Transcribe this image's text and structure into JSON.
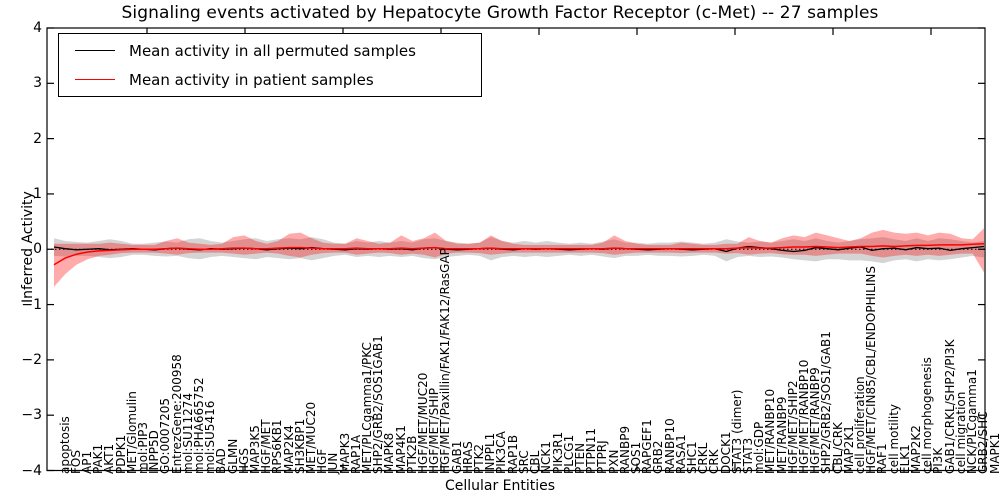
{
  "chart_data": {
    "type": "line",
    "title": "Signaling events activated by Hepatocyte Growth Factor Receptor (c-Met) -- 27 samples",
    "xlabel": "Cellular Entities",
    "ylabel": "Inferred Activity",
    "ylim": [
      -4,
      4
    ],
    "yticks": [
      4,
      3,
      2,
      1,
      0,
      -1,
      -2,
      -3,
      -4
    ],
    "ytick_labels": [
      "4",
      "3",
      "2",
      "1",
      "0",
      "−1",
      "−2",
      "−3",
      "−4"
    ],
    "grid": false,
    "zero_line_style": "dotted",
    "legend_position": "upper left",
    "categories": [
      "apoptosis",
      "FOS",
      "AP1",
      "PAK1",
      "AKT1",
      "PDPK1",
      "MET/Glomulin",
      "mol:PIP3",
      "INPP5D",
      "GO:0007205",
      "EntrezGene:200958",
      "mol:SU11274",
      "mol:PHA665752",
      "mol:SU5416",
      "BAD",
      "GLMN",
      "HGS",
      "MAP3K5",
      "HGF/MET",
      "RPS6KB1",
      "MAP2K4",
      "SH3KBP1",
      "MET/MUC20",
      "HGF",
      "JUN",
      "MAPK3",
      "RAP1A",
      "MET/PLCgamma1/PKC",
      "SHP2/GRB2/SOS1GAB1",
      "MAPK8",
      "MAP4K1",
      "PTK2B",
      "HGF/MET/MUC20",
      "HGF/MET/SHIP",
      "HGF/MET/Paxillin/FAK1/FAK12/RasGAP",
      "GAB1",
      "HRAS",
      "PTK2",
      "INPPL1",
      "PIK3CA",
      "RAP1B",
      "SRC",
      "CBL",
      "NCK1",
      "PIK3R1",
      "PLCG1",
      "PTEN",
      "PTPN11",
      "PTPRJ",
      "PXN",
      "RANBP9",
      "SOS1",
      "RAPGEF1",
      "GRB2",
      "RANBP10",
      "RASA1",
      "SHC1",
      "CRKL",
      "CRK",
      "DOCK1",
      "STAT3 (dimer)",
      "STAT3",
      "mol:GDP",
      "MET/RANBP10",
      "MET/RANBP9",
      "HGF/MET/SHIP2",
      "HGF/MET/RANBP10",
      "HGF/MET/RANBP9",
      "SHP2/GRB2/SOS1/GAB1",
      "CBL/CRK",
      "MAP2K1",
      "cell proliferation",
      "HGF/MET/CIN85/CBL/ENDOPHILINS",
      "RAF1",
      "cell motility",
      "ELK1",
      "MAP2K2",
      "cell morphogenesis",
      "PI3K",
      "GAB1/CRKL/SHP2/PI3K",
      "cell migration",
      "NCK/PLCgamma1",
      "GRB2/SHC",
      "MAPK1"
    ],
    "series": [
      {
        "name": "Mean activity in all permuted samples",
        "color": "#000000",
        "values": [
          0.04,
          0.01,
          -0.01,
          0.0,
          0.01,
          -0.01,
          0.0,
          0.01,
          0.0,
          -0.01,
          0.01,
          0.02,
          0.0,
          -0.01,
          0.01,
          0.0,
          0.01,
          0.02,
          0.01,
          -0.01,
          0.01,
          0.02,
          0.01,
          0.03,
          0.01,
          0.0,
          -0.01,
          0.01,
          0.0,
          0.01,
          0.0,
          0.01,
          -0.01,
          0.02,
          0.03,
          0.0,
          -0.01,
          0.0,
          0.01,
          0.02,
          0.0,
          -0.01,
          0.01,
          0.0,
          0.01,
          0.0,
          -0.01,
          0.0,
          0.01,
          0.0,
          0.02,
          0.01,
          0.0,
          -0.01,
          0.0,
          0.01,
          0.0,
          -0.01,
          0.0,
          0.01,
          -0.04,
          0.02,
          0.05,
          0.03,
          0.01,
          -0.02,
          -0.04,
          -0.02,
          0.03,
          0.01,
          -0.01,
          0.02,
          0.04,
          -0.02,
          0.01,
          0.02,
          -0.01,
          0.03,
          0.01,
          0.02,
          -0.02,
          0.01,
          0.03,
          0.05
        ]
      },
      {
        "name": "Mean activity in patient samples",
        "color": "#ff0000",
        "values": [
          -0.28,
          -0.16,
          -0.09,
          -0.05,
          -0.03,
          -0.02,
          -0.01,
          0.0,
          0.0,
          0.0,
          0.01,
          0.02,
          0.01,
          0.0,
          0.0,
          0.01,
          0.02,
          0.02,
          0.01,
          0.01,
          0.02,
          0.03,
          0.03,
          0.02,
          0.01,
          0.01,
          0.01,
          0.02,
          0.01,
          0.01,
          0.01,
          0.02,
          0.01,
          0.02,
          0.03,
          0.01,
          0.01,
          0.01,
          0.01,
          0.02,
          0.01,
          0.01,
          0.01,
          0.01,
          0.01,
          0.01,
          0.01,
          0.01,
          0.01,
          0.01,
          0.02,
          0.01,
          0.01,
          0.01,
          0.01,
          0.01,
          0.01,
          0.01,
          0.01,
          0.01,
          0.01,
          0.02,
          0.03,
          0.02,
          0.02,
          0.03,
          0.04,
          0.04,
          0.05,
          0.04,
          0.03,
          0.04,
          0.05,
          0.05,
          0.06,
          0.05,
          0.06,
          0.07,
          0.07,
          0.08,
          0.08,
          0.08,
          0.09,
          0.1
        ]
      }
    ],
    "bands": [
      {
        "name": "permuted samples range",
        "color": "#aaaaaa",
        "opacity": 0.5,
        "high": [
          0.2,
          0.15,
          0.13,
          0.12,
          0.15,
          0.18,
          0.15,
          0.1,
          0.1,
          0.12,
          0.14,
          0.12,
          0.18,
          0.2,
          0.15,
          0.12,
          0.15,
          0.18,
          0.2,
          0.15,
          0.18,
          0.2,
          0.18,
          0.22,
          0.18,
          0.12,
          0.1,
          0.15,
          0.12,
          0.15,
          0.12,
          0.15,
          0.12,
          0.18,
          0.2,
          0.15,
          0.12,
          0.1,
          0.12,
          0.22,
          0.15,
          0.12,
          0.15,
          0.12,
          0.15,
          0.12,
          0.1,
          0.12,
          0.1,
          0.14,
          0.18,
          0.12,
          0.12,
          0.1,
          0.12,
          0.12,
          0.14,
          0.12,
          0.1,
          0.12,
          0.18,
          0.14,
          0.12,
          0.14,
          0.12,
          0.15,
          0.18,
          0.15,
          0.2,
          0.15,
          0.12,
          0.15,
          0.18,
          0.2,
          0.22,
          0.18,
          0.15,
          0.2,
          0.15,
          0.2,
          0.18,
          0.15,
          0.12,
          0.15
        ],
        "low": [
          -0.12,
          -0.13,
          -0.12,
          -0.12,
          -0.14,
          -0.16,
          -0.14,
          -0.1,
          -0.1,
          -0.12,
          -0.13,
          -0.12,
          -0.16,
          -0.18,
          -0.14,
          -0.12,
          -0.14,
          -0.16,
          -0.18,
          -0.14,
          -0.16,
          -0.18,
          -0.16,
          -0.2,
          -0.16,
          -0.12,
          -0.1,
          -0.14,
          -0.12,
          -0.14,
          -0.12,
          -0.14,
          -0.12,
          -0.16,
          -0.18,
          -0.14,
          -0.12,
          -0.1,
          -0.12,
          -0.2,
          -0.14,
          -0.12,
          -0.14,
          -0.12,
          -0.14,
          -0.12,
          -0.1,
          -0.12,
          -0.1,
          -0.13,
          -0.16,
          -0.12,
          -0.12,
          -0.1,
          -0.12,
          -0.12,
          -0.13,
          -0.12,
          -0.1,
          -0.12,
          -0.22,
          -0.14,
          -0.12,
          -0.14,
          -0.13,
          -0.15,
          -0.18,
          -0.2,
          -0.22,
          -0.18,
          -0.18,
          -0.2,
          -0.2,
          -0.22,
          -0.25,
          -0.2,
          -0.18,
          -0.22,
          -0.18,
          -0.2,
          -0.18,
          -0.15,
          -0.12,
          -0.15
        ]
      },
      {
        "name": "patient samples range",
        "color": "#ff0000",
        "opacity": 0.33,
        "high": [
          0.1,
          0.1,
          0.1,
          0.1,
          0.1,
          0.12,
          0.1,
          0.08,
          0.08,
          0.08,
          0.15,
          0.2,
          0.12,
          0.1,
          0.08,
          0.1,
          0.22,
          0.25,
          0.15,
          0.1,
          0.15,
          0.28,
          0.3,
          0.2,
          0.12,
          0.1,
          0.1,
          0.2,
          0.15,
          0.1,
          0.12,
          0.25,
          0.15,
          0.2,
          0.3,
          0.15,
          0.1,
          0.1,
          0.12,
          0.25,
          0.15,
          0.1,
          0.08,
          0.08,
          0.08,
          0.08,
          0.08,
          0.08,
          0.08,
          0.12,
          0.25,
          0.15,
          0.1,
          0.08,
          0.08,
          0.08,
          0.12,
          0.1,
          0.08,
          0.08,
          0.1,
          0.1,
          0.22,
          0.15,
          0.12,
          0.2,
          0.25,
          0.22,
          0.3,
          0.25,
          0.2,
          0.15,
          0.2,
          0.3,
          0.35,
          0.3,
          0.28,
          0.3,
          0.25,
          0.3,
          0.28,
          0.2,
          0.18,
          0.38
        ],
        "low": [
          -0.68,
          -0.45,
          -0.28,
          -0.18,
          -0.12,
          -0.1,
          -0.07,
          -0.06,
          -0.06,
          -0.06,
          -0.08,
          -0.1,
          -0.07,
          -0.06,
          -0.06,
          -0.06,
          -0.08,
          -0.1,
          -0.08,
          -0.06,
          -0.08,
          -0.12,
          -0.15,
          -0.1,
          -0.07,
          -0.06,
          -0.06,
          -0.1,
          -0.08,
          -0.06,
          -0.07,
          -0.1,
          -0.08,
          -0.1,
          -0.15,
          -0.08,
          -0.06,
          -0.06,
          -0.07,
          -0.1,
          -0.08,
          -0.06,
          -0.06,
          -0.06,
          -0.06,
          -0.06,
          -0.06,
          -0.06,
          -0.06,
          -0.07,
          -0.1,
          -0.08,
          -0.06,
          -0.06,
          -0.06,
          -0.06,
          -0.07,
          -0.06,
          -0.06,
          -0.06,
          -0.08,
          -0.07,
          -0.1,
          -0.08,
          -0.07,
          -0.09,
          -0.1,
          -0.1,
          -0.12,
          -0.1,
          -0.08,
          -0.08,
          -0.08,
          -0.12,
          -0.15,
          -0.12,
          -0.1,
          -0.12,
          -0.1,
          -0.12,
          -0.1,
          -0.08,
          -0.08,
          -0.42
        ]
      }
    ]
  }
}
